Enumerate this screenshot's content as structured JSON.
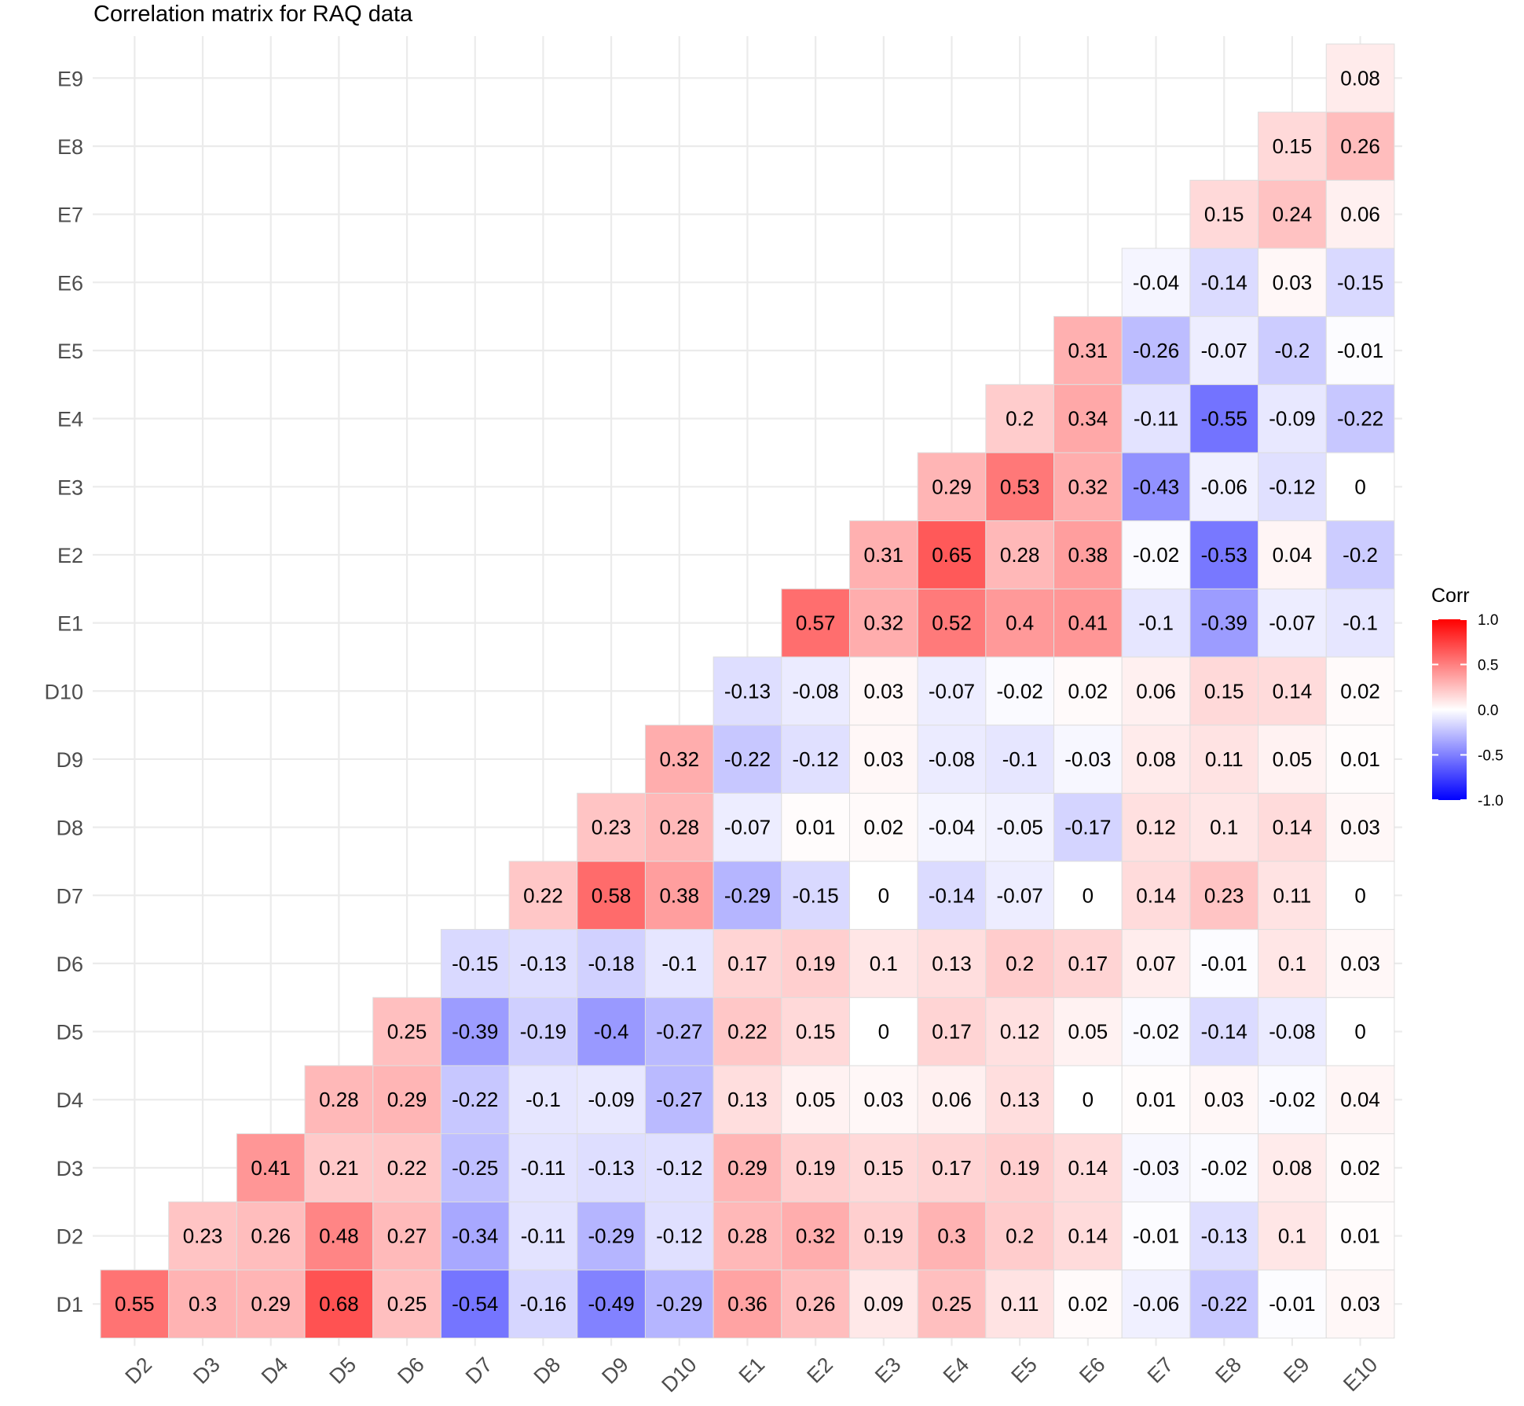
{
  "chart_data": {
    "type": "heatmap",
    "title": "Correlation matrix for RAQ data",
    "x_categories": [
      "D2",
      "D3",
      "D4",
      "D5",
      "D6",
      "D7",
      "D8",
      "D9",
      "D10",
      "E1",
      "E2",
      "E3",
      "E4",
      "E5",
      "E6",
      "E7",
      "E8",
      "E9",
      "E10"
    ],
    "y_categories": [
      "D1",
      "D2",
      "D3",
      "D4",
      "D5",
      "D6",
      "D7",
      "D8",
      "D9",
      "D10",
      "E1",
      "E2",
      "E3",
      "E4",
      "E5",
      "E6",
      "E7",
      "E8",
      "E9"
    ],
    "values": [
      [
        0.55,
        0.3,
        0.29,
        0.68,
        0.25,
        -0.54,
        -0.16,
        -0.49,
        -0.29,
        0.36,
        0.26,
        0.09,
        0.25,
        0.11,
        0.02,
        -0.06,
        -0.22,
        -0.01,
        0.03
      ],
      [
        null,
        0.23,
        0.26,
        0.48,
        0.27,
        -0.34,
        -0.11,
        -0.29,
        -0.12,
        0.28,
        0.32,
        0.19,
        0.3,
        0.2,
        0.14,
        -0.01,
        -0.13,
        0.1,
        0.01
      ],
      [
        null,
        null,
        0.41,
        0.21,
        0.22,
        -0.25,
        -0.11,
        -0.13,
        -0.12,
        0.29,
        0.19,
        0.15,
        0.17,
        0.19,
        0.14,
        -0.03,
        -0.02,
        0.08,
        0.02
      ],
      [
        null,
        null,
        null,
        0.28,
        0.29,
        -0.22,
        -0.1,
        -0.09,
        -0.27,
        0.13,
        0.05,
        0.03,
        0.06,
        0.13,
        0,
        0.01,
        0.03,
        -0.02,
        0.04
      ],
      [
        null,
        null,
        null,
        null,
        0.25,
        -0.39,
        -0.19,
        -0.4,
        -0.27,
        0.22,
        0.15,
        0,
        0.17,
        0.12,
        0.05,
        -0.02,
        -0.14,
        -0.08,
        0
      ],
      [
        null,
        null,
        null,
        null,
        null,
        -0.15,
        -0.13,
        -0.18,
        -0.1,
        0.17,
        0.19,
        0.1,
        0.13,
        0.2,
        0.17,
        0.07,
        -0.01,
        0.1,
        0.03
      ],
      [
        null,
        null,
        null,
        null,
        null,
        null,
        0.22,
        0.58,
        0.38,
        -0.29,
        -0.15,
        0,
        -0.14,
        -0.07,
        0,
        0.14,
        0.23,
        0.11,
        0
      ],
      [
        null,
        null,
        null,
        null,
        null,
        null,
        null,
        0.23,
        0.28,
        -0.07,
        0.01,
        0.02,
        -0.04,
        -0.05,
        -0.17,
        0.12,
        0.1,
        0.14,
        0.03
      ],
      [
        null,
        null,
        null,
        null,
        null,
        null,
        null,
        null,
        0.32,
        -0.22,
        -0.12,
        0.03,
        -0.08,
        -0.1,
        -0.03,
        0.08,
        0.11,
        0.05,
        0.01
      ],
      [
        null,
        null,
        null,
        null,
        null,
        null,
        null,
        null,
        null,
        -0.13,
        -0.08,
        0.03,
        -0.07,
        -0.02,
        0.02,
        0.06,
        0.15,
        0.14,
        0.02
      ],
      [
        null,
        null,
        null,
        null,
        null,
        null,
        null,
        null,
        null,
        null,
        0.57,
        0.32,
        0.52,
        0.4,
        0.41,
        -0.1,
        -0.39,
        -0.07,
        -0.1
      ],
      [
        null,
        null,
        null,
        null,
        null,
        null,
        null,
        null,
        null,
        null,
        null,
        0.31,
        0.65,
        0.28,
        0.38,
        -0.02,
        -0.53,
        0.04,
        -0.2
      ],
      [
        null,
        null,
        null,
        null,
        null,
        null,
        null,
        null,
        null,
        null,
        null,
        null,
        0.29,
        0.53,
        0.32,
        -0.43,
        -0.06,
        -0.12,
        0
      ],
      [
        null,
        null,
        null,
        null,
        null,
        null,
        null,
        null,
        null,
        null,
        null,
        null,
        null,
        0.2,
        0.34,
        -0.11,
        -0.55,
        -0.09,
        -0.22
      ],
      [
        null,
        null,
        null,
        null,
        null,
        null,
        null,
        null,
        null,
        null,
        null,
        null,
        null,
        null,
        0.31,
        -0.26,
        -0.07,
        -0.2,
        -0.01
      ],
      [
        null,
        null,
        null,
        null,
        null,
        null,
        null,
        null,
        null,
        null,
        null,
        null,
        null,
        null,
        null,
        -0.04,
        -0.14,
        0.03,
        -0.15
      ],
      [
        null,
        null,
        null,
        null,
        null,
        null,
        null,
        null,
        null,
        null,
        null,
        null,
        null,
        null,
        null,
        null,
        0.15,
        0.24,
        0.06
      ],
      [
        null,
        null,
        null,
        null,
        null,
        null,
        null,
        null,
        null,
        null,
        null,
        null,
        null,
        null,
        null,
        null,
        null,
        0.15,
        0.26
      ],
      [
        null,
        null,
        null,
        null,
        null,
        null,
        null,
        null,
        null,
        null,
        null,
        null,
        null,
        null,
        null,
        null,
        null,
        null,
        0.08
      ]
    ],
    "color_scale": {
      "low": "#0000FF",
      "mid": "#FFFFFF",
      "high": "#FF0000",
      "limits": [
        -1,
        1
      ]
    },
    "legend": {
      "title": "Corr",
      "ticks": [
        "1.0",
        "0.5",
        "0.0",
        "-0.5",
        "-1.0"
      ],
      "tick_values": [
        1,
        0.5,
        0,
        -0.5,
        -1
      ],
      "position": "right"
    },
    "grid": true
  }
}
